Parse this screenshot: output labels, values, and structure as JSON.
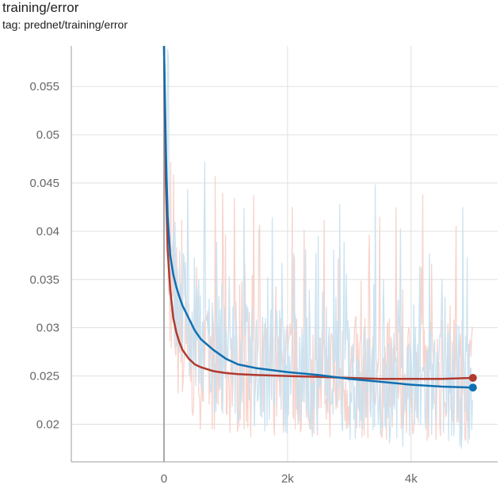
{
  "panel": {
    "title": "training/error",
    "tag": "tag: prednet/training/error"
  },
  "chart_data": {
    "type": "line",
    "title": "training/error",
    "subtitle": "tag: prednet/training/error",
    "xlabel": "",
    "ylabel": "",
    "xlim": [
      -1500,
      5400
    ],
    "ylim": [
      0.0161,
      0.0592
    ],
    "x_ticks": [
      {
        "value": 0,
        "label": "0"
      },
      {
        "value": 2000,
        "label": "2k"
      },
      {
        "value": 4000,
        "label": "4k"
      }
    ],
    "y_ticks": [
      {
        "value": 0.02,
        "label": "0.02"
      },
      {
        "value": 0.025,
        "label": "0.025"
      },
      {
        "value": 0.03,
        "label": "0.03"
      },
      {
        "value": 0.035,
        "label": "0.035"
      },
      {
        "value": 0.04,
        "label": "0.04"
      },
      {
        "value": 0.045,
        "label": "0.045"
      },
      {
        "value": 0.05,
        "label": "0.05"
      },
      {
        "value": 0.055,
        "label": "0.055"
      }
    ],
    "grid": true,
    "series": [
      {
        "name": "",
        "color": "#b03a2e",
        "raw_color": "#f5c9c0",
        "x": [
          0,
          30,
          60,
          100,
          150,
          200,
          250,
          300,
          400,
          500,
          600,
          800,
          1000,
          1200,
          1500,
          2000,
          2500,
          3000,
          3500,
          4000,
          4500,
          5000
        ],
        "y": [
          0.0592,
          0.045,
          0.038,
          0.034,
          0.031,
          0.0295,
          0.0285,
          0.0277,
          0.0268,
          0.0262,
          0.0259,
          0.0255,
          0.0253,
          0.0252,
          0.0251,
          0.025,
          0.0249,
          0.0248,
          0.0247,
          0.0247,
          0.0247,
          0.0248
        ]
      },
      {
        "name": "",
        "color": "#0f6fb1",
        "raw_color": "#c6e0ef",
        "x": [
          0,
          30,
          60,
          100,
          150,
          200,
          250,
          300,
          400,
          500,
          600,
          800,
          1000,
          1200,
          1500,
          2000,
          2500,
          3000,
          3500,
          4000,
          4500,
          5000
        ],
        "y": [
          0.0592,
          0.0485,
          0.0415,
          0.0375,
          0.0355,
          0.0342,
          0.0332,
          0.0323,
          0.031,
          0.0297,
          0.0288,
          0.0277,
          0.0268,
          0.0262,
          0.0258,
          0.0254,
          0.0251,
          0.0247,
          0.0244,
          0.0241,
          0.0239,
          0.0238
        ]
      }
    ]
  }
}
